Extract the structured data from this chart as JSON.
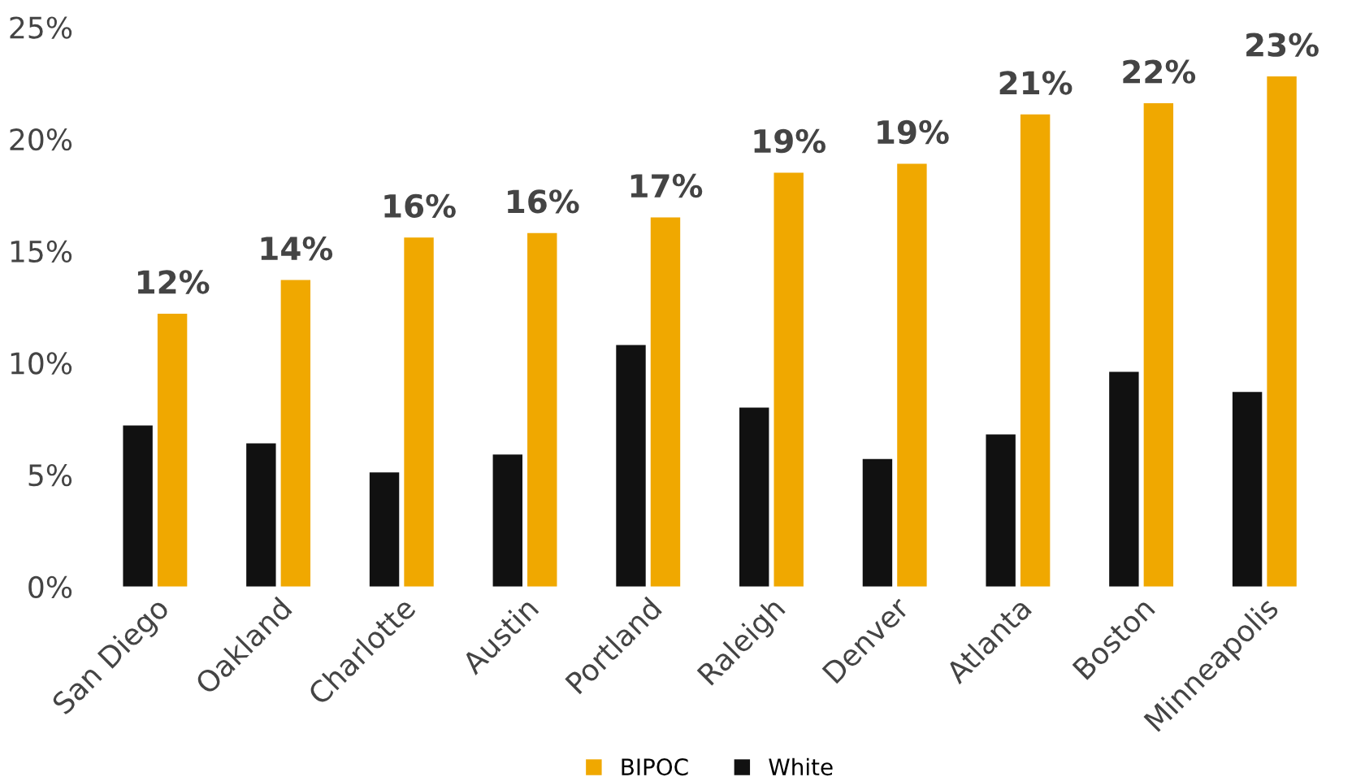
{
  "chart_data": {
    "type": "bar",
    "categories": [
      "San Diego",
      "Oakland",
      "Charlotte",
      "Austin",
      "Portland",
      "Raleigh",
      "Denver",
      "Atlanta",
      "Boston",
      "Minneapolis"
    ],
    "series": [
      {
        "name": "White",
        "color": "#111111",
        "values": [
          7.2,
          6.4,
          5.1,
          5.9,
          10.8,
          8.0,
          5.7,
          6.8,
          9.6,
          8.7
        ]
      },
      {
        "name": "BIPOC",
        "color": "#f0a800",
        "values": [
          12.2,
          13.7,
          15.6,
          15.8,
          16.5,
          18.5,
          18.9,
          21.1,
          21.6,
          22.8
        ],
        "value_labels": [
          "12%",
          "14%",
          "16%",
          "16%",
          "17%",
          "19%",
          "19%",
          "21%",
          "22%",
          "23%"
        ]
      }
    ],
    "ylim": [
      0,
      25
    ],
    "yticks": [
      {
        "value": 0,
        "label": "0%"
      },
      {
        "value": 5,
        "label": "5%"
      },
      {
        "value": 10,
        "label": "10%"
      },
      {
        "value": 15,
        "label": "15%"
      },
      {
        "value": 20,
        "label": "20%"
      },
      {
        "value": 25,
        "label": "25%"
      }
    ],
    "grid": false,
    "legend": "bottom"
  }
}
